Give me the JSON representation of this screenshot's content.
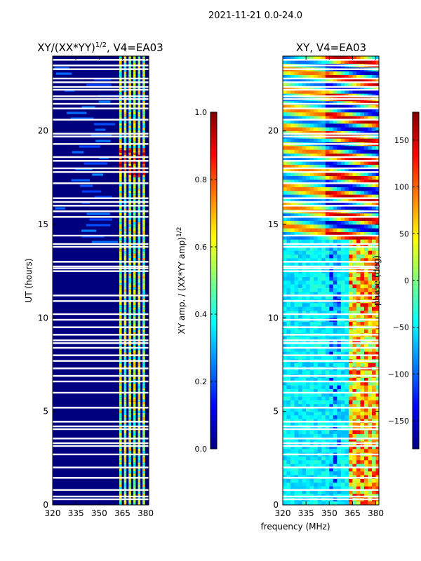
{
  "suptitle": "2021-11-21 0.0-24.0",
  "xlabel_shared": "frequency (MHz)",
  "colors": {
    "background": "#00007f",
    "gap": "#ffffff",
    "jet_stops": [
      "#00007f",
      "#0000ff",
      "#007fff",
      "#00ffff",
      "#7fff7f",
      "#ffff00",
      "#ff7f00",
      "#ff0000",
      "#7f0000"
    ]
  },
  "chart_data": [
    {
      "type": "heatmap",
      "title_main": "XY/(XX*YY)",
      "title_sup": "1/2",
      "title_tail": ", V4=EA03",
      "ylabel": "UT (hours)",
      "xlim": [
        320,
        382
      ],
      "ylim": [
        0,
        24
      ],
      "xticks": [
        320,
        335,
        350,
        365,
        380
      ],
      "yticks": [
        0,
        5,
        10,
        15,
        20
      ],
      "colorbar": {
        "label_main": "XY amp. / (XX*YY amp)",
        "label_sup": "1/2",
        "range": [
          0.0,
          1.0
        ],
        "ticks": [
          0.0,
          0.2,
          0.4,
          0.6,
          0.8,
          1.0
        ],
        "tick_labels": [
          "0.0",
          "0.2",
          "0.4",
          "0.6",
          "0.8",
          "1.0"
        ]
      },
      "bright_band_mhz": [
        363,
        380
      ],
      "gap_hours": [
        0.3,
        0.45,
        0.8,
        1.45,
        2.0,
        2.7,
        3.15,
        3.3,
        3.55,
        4.05,
        4.2,
        4.45,
        5.2,
        6.0,
        6.6,
        6.9,
        7.3,
        7.7,
        8.0,
        8.4,
        8.65,
        8.8,
        9.1,
        9.5,
        9.9,
        10.2,
        10.9,
        11.2,
        12.5,
        12.65,
        12.75,
        13.0,
        13.8,
        13.95,
        14.4,
        15.4,
        15.7,
        16.0,
        16.2,
        16.4,
        17.2,
        17.8,
        18.0,
        18.4,
        18.6,
        19.3,
        19.7,
        19.85,
        20.6,
        21.2,
        21.45,
        21.7,
        21.85,
        22.2,
        22.35,
        22.6,
        22.8,
        23.3,
        23.5,
        23.8
      ]
    },
    {
      "type": "heatmap",
      "title": "XY, V4=EA03",
      "xlim": [
        320,
        382
      ],
      "ylim": [
        0,
        24
      ],
      "xticks": [
        320,
        335,
        350,
        365,
        380
      ],
      "yticks": [
        0,
        5,
        10,
        15,
        20
      ],
      "colorbar": {
        "label": "phase (deg)",
        "range": [
          -180,
          180
        ],
        "ticks": [
          -150,
          -100,
          -50,
          0,
          50,
          100,
          150
        ],
        "tick_labels": [
          "−150",
          "−100",
          "−50",
          "0",
          "50",
          "100",
          "150"
        ]
      },
      "gap_hours": [
        0.3,
        0.45,
        0.8,
        1.45,
        2.0,
        2.7,
        3.15,
        3.3,
        3.55,
        4.05,
        4.2,
        4.45,
        5.2,
        6.0,
        6.6,
        6.9,
        7.3,
        7.7,
        8.0,
        8.4,
        8.65,
        8.8,
        9.1,
        9.5,
        9.9,
        10.2,
        10.9,
        11.2,
        12.5,
        12.65,
        12.75,
        13.0,
        13.8,
        13.95,
        14.4,
        15.4,
        15.7,
        16.0,
        16.2,
        16.4,
        17.2,
        17.8,
        18.0,
        18.4,
        18.6,
        19.3,
        19.7,
        19.85,
        20.6,
        21.2,
        21.45,
        21.7,
        21.85,
        22.2,
        22.35,
        22.6,
        22.8,
        23.3,
        23.5,
        23.8
      ]
    }
  ]
}
